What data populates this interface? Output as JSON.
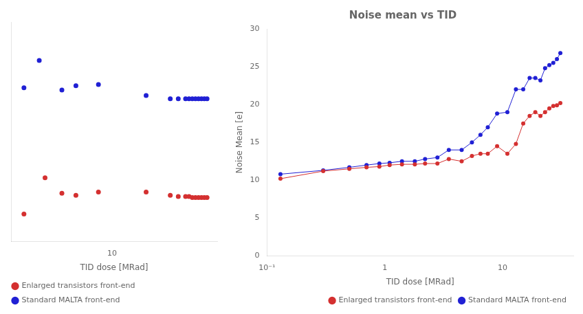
{
  "chart_data": [
    {
      "type": "scatter",
      "xlabel": "TID dose [MRad]",
      "log": "x",
      "xlim": [
        3.0,
        35
      ],
      "ylim": [
        8,
        28
      ],
      "xticks": [
        10
      ],
      "tick_labels": "x",
      "grid": false,
      "legend": "lower left",
      "marker": "circle",
      "series": [
        {
          "name": "Enlarged transistors front-end",
          "color": "#d43030",
          "x": [
            3.5,
            4.5,
            5.5,
            6.5,
            8.5,
            15,
            20,
            22,
            24,
            25,
            26,
            27,
            28,
            29,
            30,
            31
          ],
          "values": [
            10.5,
            13.8,
            12.4,
            12.2,
            12.5,
            12.5,
            12.2,
            12.1,
            12.1,
            12.1,
            12.0,
            12.0,
            12.0,
            12.0,
            12.0,
            12.0
          ]
        },
        {
          "name": "Standard MALTA front-end",
          "color": "#2020d4",
          "x": [
            3.5,
            4.2,
            5.5,
            6.5,
            8.5,
            15,
            20,
            22,
            24,
            25,
            26,
            27,
            28,
            29,
            30,
            31
          ],
          "values": [
            22.0,
            24.5,
            21.8,
            22.2,
            22.3,
            21.3,
            21.0,
            21.0,
            21.0,
            21.0,
            21.0,
            21.0,
            21.0,
            21.0,
            21.0,
            21.0
          ]
        }
      ]
    },
    {
      "type": "line",
      "title": "Noise mean vs TID",
      "xlabel": "TID dose [MRad]",
      "ylabel": "Noise Mean [e]",
      "log": "x",
      "xlim": [
        0.1,
        40
      ],
      "ylim": [
        0,
        30
      ],
      "xticks": [
        {
          "value": 0.1,
          "label": "10⁻¹"
        },
        1,
        10
      ],
      "yticks": [
        0,
        5,
        10,
        15,
        20,
        25,
        30
      ],
      "grid": false,
      "legend": "lower right",
      "marker": "circle",
      "line_style": "solid",
      "series": [
        {
          "name": "Enlarged transistors front-end",
          "color": "#d43030",
          "x": [
            0.13,
            0.3,
            0.5,
            0.7,
            0.9,
            1.1,
            1.4,
            1.8,
            2.2,
            2.8,
            3.5,
            4.5,
            5.5,
            6.5,
            7.5,
            9.0,
            11,
            13,
            15,
            17,
            19,
            21,
            23,
            25,
            27,
            29,
            31
          ],
          "values": [
            10.2,
            11.2,
            11.5,
            11.7,
            11.8,
            12.0,
            12.1,
            12.1,
            12.2,
            12.2,
            12.8,
            12.5,
            13.2,
            13.5,
            13.5,
            14.5,
            13.5,
            14.8,
            17.5,
            18.5,
            19.0,
            18.5,
            19.0,
            19.5,
            19.8,
            19.9,
            20.2
          ]
        },
        {
          "name": "Standard MALTA front-end",
          "color": "#2020d4",
          "x": [
            0.13,
            0.3,
            0.5,
            0.7,
            0.9,
            1.1,
            1.4,
            1.8,
            2.2,
            2.8,
            3.5,
            4.5,
            5.5,
            6.5,
            7.5,
            9.0,
            11,
            13,
            15,
            17,
            19,
            21,
            23,
            25,
            27,
            29,
            31
          ],
          "values": [
            10.8,
            11.3,
            11.7,
            12.0,
            12.2,
            12.3,
            12.5,
            12.5,
            12.8,
            13.0,
            14.0,
            14.0,
            15.0,
            16.0,
            17.0,
            18.8,
            19.0,
            22.0,
            22.0,
            23.5,
            23.5,
            23.2,
            24.8,
            25.2,
            25.5,
            26.0,
            26.8
          ]
        }
      ]
    }
  ]
}
